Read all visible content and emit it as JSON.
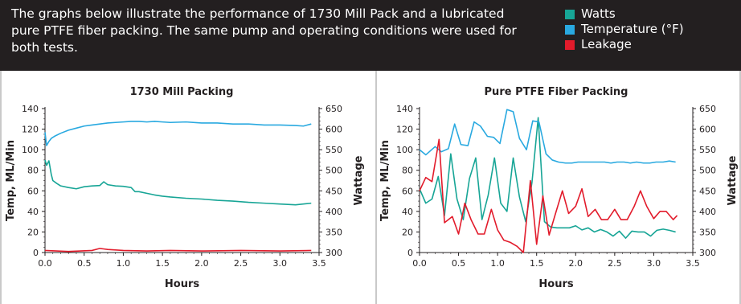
{
  "description": "The graphs below illustrate the performance of 1730 Mill Pack and a lubricated pure PTFE fiber packing. The same pump and operating conditions were used for both tests.",
  "legend": [
    {
      "label": "Watts",
      "color": "#17a596"
    },
    {
      "label": "Temperature (°F)",
      "color": "#29a9e0"
    },
    {
      "label": "Leakage",
      "color": "#e21b2b"
    }
  ],
  "colors": {
    "header_bg": "#231f20",
    "divider": "#c9c9c9"
  },
  "chart_data": [
    {
      "type": "line",
      "title": "1730 Mill Packing",
      "xlabel": "Hours",
      "ylabel": "Temp, ML/Min",
      "y2label": "Wattage",
      "xlim": [
        0,
        3.5
      ],
      "ylim": [
        0,
        140
      ],
      "y2lim": [
        300,
        650
      ],
      "xticks": [
        "0.0",
        "0.5",
        "1.0",
        "1.5",
        "2.0",
        "2.5",
        "3.0",
        "3.5"
      ],
      "yticks": [
        "0",
        "20",
        "40",
        "60",
        "80",
        "100",
        "120",
        "140"
      ],
      "y2ticks": [
        "300",
        "350",
        "400",
        "450",
        "500",
        "550",
        "600",
        "650"
      ],
      "series": [
        {
          "name": "Temperature (°F)",
          "color": "#29a9e0",
          "axis": "left",
          "x": [
            0,
            0.02,
            0.05,
            0.08,
            0.12,
            0.2,
            0.3,
            0.4,
            0.5,
            0.6,
            0.7,
            0.8,
            0.9,
            1.0,
            1.1,
            1.2,
            1.3,
            1.4,
            1.5,
            1.6,
            1.8,
            2.0,
            2.2,
            2.4,
            2.6,
            2.8,
            3.0,
            3.2,
            3.3,
            3.4
          ],
          "y": [
            117,
            104,
            108,
            111,
            113,
            116,
            119,
            121,
            123,
            124,
            125,
            126,
            126.5,
            127,
            127.5,
            127.5,
            127,
            127.5,
            127,
            126.5,
            127,
            126,
            126,
            125,
            125,
            124,
            124,
            123.5,
            123,
            125
          ]
        },
        {
          "name": "Watts",
          "color": "#17a596",
          "axis": "right",
          "x": [
            0,
            0.02,
            0.05,
            0.08,
            0.1,
            0.15,
            0.2,
            0.3,
            0.4,
            0.5,
            0.6,
            0.7,
            0.75,
            0.8,
            0.9,
            1.0,
            1.1,
            1.15,
            1.2,
            1.3,
            1.4,
            1.5,
            1.6,
            1.8,
            2.0,
            2.2,
            2.4,
            2.6,
            2.8,
            3.0,
            3.2,
            3.4
          ],
          "y": [
            525,
            512,
            523,
            490,
            475,
            468,
            462,
            458,
            455,
            460,
            462,
            463,
            472,
            465,
            462,
            461,
            458,
            448,
            448,
            444,
            440,
            437,
            435,
            432,
            430,
            427,
            425,
            422,
            420,
            418,
            416,
            420
          ]
        },
        {
          "name": "Leakage",
          "color": "#e21b2b",
          "axis": "left",
          "x": [
            0,
            0.3,
            0.6,
            0.7,
            0.8,
            1.0,
            1.3,
            1.6,
            2.0,
            2.5,
            3.0,
            3.4
          ],
          "y": [
            2,
            1,
            2,
            4,
            3,
            2,
            1.5,
            2,
            1.5,
            2,
            1.5,
            2
          ]
        }
      ]
    },
    {
      "type": "line",
      "title": "Pure PTFE Fiber Packing",
      "xlabel": "Hours",
      "ylabel": "Temp, ML/Min",
      "y2label": "Wattage",
      "xlim": [
        0,
        3.5
      ],
      "ylim": [
        0,
        140
      ],
      "y2lim": [
        300,
        650
      ],
      "xticks": [
        "0.0",
        "0.5",
        "1.0",
        "1.5",
        "2.0",
        "2.5",
        "3.0",
        "3.5"
      ],
      "yticks": [
        "0",
        "20",
        "40",
        "60",
        "80",
        "100",
        "120",
        "140"
      ],
      "y2ticks": [
        "300",
        "350",
        "400",
        "450",
        "500",
        "550",
        "600",
        "650"
      ],
      "series": [
        {
          "name": "Temperature (°F)",
          "color": "#29a9e0",
          "axis": "left",
          "x": [
            0,
            0.08,
            0.2,
            0.28,
            0.37,
            0.45,
            0.53,
            0.62,
            0.7,
            0.78,
            0.87,
            0.95,
            1.03,
            1.12,
            1.2,
            1.28,
            1.37,
            1.45,
            1.53,
            1.62,
            1.7,
            1.78,
            1.87,
            1.95,
            2.03,
            2.12,
            2.2,
            2.28,
            2.37,
            2.45,
            2.53,
            2.62,
            2.7,
            2.78,
            2.87,
            2.95,
            3.03,
            3.12,
            3.2,
            3.28
          ],
          "y": [
            100,
            95,
            103,
            98,
            101,
            125,
            105,
            104,
            127,
            123,
            113,
            112,
            106,
            139,
            137,
            111,
            100,
            128,
            127,
            96,
            90,
            88,
            87,
            87,
            88,
            88,
            88,
            88,
            88,
            87,
            88,
            88,
            87,
            88,
            87,
            87,
            88,
            88,
            89,
            88
          ]
        },
        {
          "name": "Watts",
          "color": "#17a596",
          "axis": "right",
          "x": [
            0,
            0.08,
            0.16,
            0.24,
            0.32,
            0.4,
            0.48,
            0.56,
            0.64,
            0.72,
            0.8,
            0.88,
            0.96,
            1.04,
            1.12,
            1.2,
            1.28,
            1.36,
            1.44,
            1.52,
            1.6,
            1.68,
            1.76,
            1.84,
            1.92,
            2.0,
            2.08,
            2.16,
            2.24,
            2.32,
            2.4,
            2.48,
            2.56,
            2.64,
            2.72,
            2.8,
            2.88,
            2.96,
            3.04,
            3.12,
            3.2,
            3.28
          ],
          "y": [
            455,
            420,
            430,
            485,
            390,
            540,
            430,
            380,
            480,
            530,
            380,
            440,
            530,
            420,
            400,
            530,
            435,
            375,
            470,
            628,
            375,
            362,
            360,
            360,
            360,
            365,
            355,
            360,
            350,
            356,
            350,
            340,
            352,
            335,
            352,
            350,
            350,
            340,
            354,
            357,
            354,
            350
          ]
        },
        {
          "name": "Leakage",
          "color": "#e21b2b",
          "axis": "left",
          "x": [
            0,
            0.08,
            0.16,
            0.25,
            0.32,
            0.42,
            0.5,
            0.58,
            0.66,
            0.75,
            0.83,
            0.92,
            1.0,
            1.08,
            1.16,
            1.25,
            1.33,
            1.42,
            1.5,
            1.58,
            1.66,
            1.75,
            1.83,
            1.91,
            2.0,
            2.08,
            2.16,
            2.25,
            2.33,
            2.41,
            2.5,
            2.58,
            2.66,
            2.75,
            2.83,
            2.91,
            3.0,
            3.08,
            3.16,
            3.25,
            3.3
          ],
          "y": [
            60,
            73,
            69,
            110,
            29,
            35,
            18,
            48,
            32,
            18,
            18,
            42,
            22,
            12,
            10,
            6,
            0,
            70,
            8,
            55,
            17,
            40,
            60,
            38,
            45,
            62,
            35,
            42,
            32,
            32,
            42,
            32,
            32,
            45,
            60,
            45,
            33,
            40,
            40,
            32,
            36
          ]
        }
      ]
    }
  ]
}
